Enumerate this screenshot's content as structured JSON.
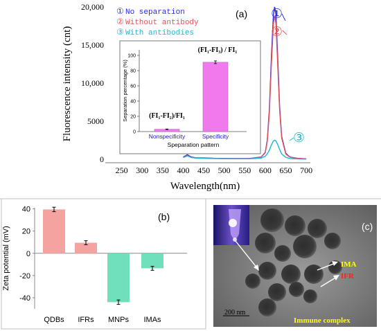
{
  "panel_a": {
    "label": "(a)",
    "legend": [
      {
        "marker": "①",
        "text": "No separation",
        "color": "#2a2ae6"
      },
      {
        "marker": "②",
        "text": "Without antibody",
        "color": "#e8505a"
      },
      {
        "marker": "③",
        "text": "With antibodies",
        "color": "#19b6d6"
      }
    ],
    "curve_markers": [
      "①",
      "②",
      "③"
    ],
    "inset": {
      "annotation_left": "(FI₁-FI₂)/FI₁",
      "annotation_right": "(FI₁-FI₃) / FI₁"
    }
  },
  "panel_b": {
    "label": "(b)"
  },
  "panel_c": {
    "label": "(c)",
    "labels": {
      "ima": "IMA",
      "ifr": "IFR",
      "complex": "Immune complex",
      "scale": "200 nm"
    },
    "colors": {
      "ima": "#ffff00",
      "ifr": "#ff2020",
      "complex": "#ffff00"
    }
  },
  "chart_data": [
    {
      "type": "line",
      "xlabel": "Wavelength(nm)",
      "ylabel": "Fluorescence intensity (cnt)",
      "xlim": [
        210,
        710
      ],
      "ylim": [
        0,
        20000
      ],
      "xticks": [
        "250",
        "300",
        "350",
        "400",
        "450",
        "500",
        "550",
        "600",
        "650",
        "700"
      ],
      "yticks": [
        "0",
        "5000",
        "10,000",
        "15,000",
        "20,000"
      ],
      "series": [
        {
          "name": "No separation",
          "color": "#2a2ae6",
          "x": [
            400,
            410,
            420,
            430,
            450,
            480,
            520,
            560,
            590,
            600,
            605,
            610,
            615,
            620,
            623,
            626,
            630,
            635,
            640,
            650,
            660,
            680,
            700
          ],
          "y": [
            300,
            600,
            300,
            200,
            180,
            120,
            90,
            90,
            300,
            900,
            2500,
            6500,
            13500,
            19000,
            20000,
            19000,
            14000,
            7000,
            3000,
            800,
            300,
            120,
            60
          ]
        },
        {
          "name": "Without antibody",
          "color": "#e8505a",
          "x": [
            400,
            410,
            420,
            430,
            450,
            480,
            520,
            560,
            590,
            600,
            605,
            610,
            615,
            620,
            623,
            626,
            630,
            635,
            640,
            650,
            660,
            680,
            700
          ],
          "y": [
            250,
            500,
            250,
            180,
            160,
            110,
            80,
            80,
            280,
            850,
            2300,
            6000,
            12500,
            17800,
            18800,
            17800,
            13000,
            6500,
            2800,
            700,
            280,
            110,
            50
          ]
        },
        {
          "name": "With antibodies",
          "color": "#19b6d6",
          "x": [
            400,
            410,
            420,
            430,
            450,
            480,
            520,
            560,
            590,
            600,
            605,
            610,
            615,
            620,
            623,
            626,
            630,
            635,
            640,
            650,
            660,
            680,
            700
          ],
          "y": [
            220,
            450,
            230,
            150,
            120,
            80,
            60,
            60,
            150,
            400,
            700,
            1200,
            1900,
            2400,
            2500,
            2400,
            2000,
            1300,
            700,
            250,
            100,
            40,
            20
          ]
        }
      ]
    },
    {
      "type": "bar",
      "xlabel": "Speparation pattern",
      "ylabel": "Separation percentage (%)",
      "ylim": [
        0,
        100
      ],
      "yticks": [
        "0",
        "20",
        "40",
        "60",
        "80",
        "100"
      ],
      "categories": [
        "Nonspecificity",
        "Specificity"
      ],
      "values": [
        3,
        91
      ],
      "errors": [
        0.4,
        1.8
      ],
      "bar_color": "#ee7aee"
    },
    {
      "type": "bar",
      "xlabel": "",
      "ylabel": "Zeta potential (mV)",
      "ylim": [
        -50,
        46
      ],
      "yticks": [
        "40",
        "20",
        "0",
        "-20",
        "-40"
      ],
      "categories": [
        "QDBs",
        "IFRs",
        "MNPs",
        "IMAs"
      ],
      "values": [
        39.5,
        9.5,
        -44,
        -13.5
      ],
      "errors": [
        2,
        1.8,
        2,
        1.8
      ],
      "colors": [
        "#f4a3a0",
        "#f4a3a0",
        "#6fe0bb",
        "#6fe0bb"
      ]
    }
  ]
}
